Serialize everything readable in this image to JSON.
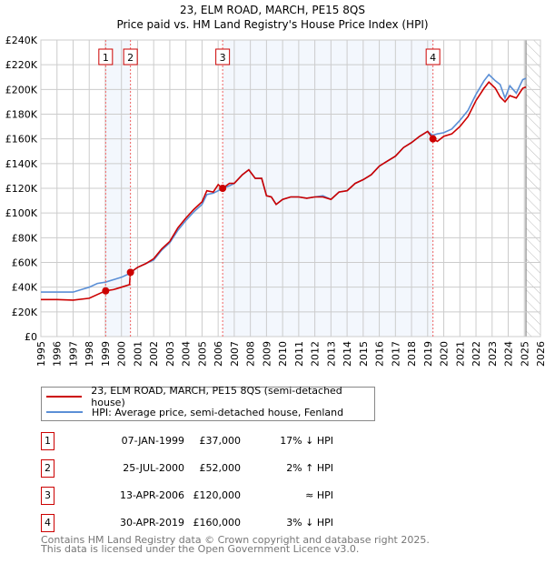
{
  "chart_data": {
    "type": "line",
    "title": "23, ELM ROAD, MARCH, PE15 8QS",
    "subtitle": "Price paid vs. HM Land Registry's House Price Index (HPI)",
    "xlim": [
      1995,
      2026
    ],
    "ylim": [
      0,
      240000
    ],
    "x_ticks": [
      "1995",
      "1996",
      "1997",
      "1998",
      "1999",
      "2000",
      "2001",
      "2002",
      "2003",
      "2004",
      "2005",
      "2006",
      "2007",
      "2008",
      "2009",
      "2010",
      "2011",
      "2012",
      "2013",
      "2014",
      "2015",
      "2016",
      "2017",
      "2018",
      "2019",
      "2020",
      "2021",
      "2022",
      "2023",
      "2024",
      "2025",
      "2026"
    ],
    "y_ticks": [
      {
        "v": 0,
        "label": "£0"
      },
      {
        "v": 20000,
        "label": "£20K"
      },
      {
        "v": 40000,
        "label": "£40K"
      },
      {
        "v": 60000,
        "label": "£60K"
      },
      {
        "v": 80000,
        "label": "£80K"
      },
      {
        "v": 100000,
        "label": "£100K"
      },
      {
        "v": 120000,
        "label": "£120K"
      },
      {
        "v": 140000,
        "label": "£140K"
      },
      {
        "v": 160000,
        "label": "£160K"
      },
      {
        "v": 180000,
        "label": "£180K"
      },
      {
        "v": 200000,
        "label": "£200K"
      },
      {
        "v": 220000,
        "label": "£220K"
      },
      {
        "v": 240000,
        "label": "£240K"
      }
    ],
    "grid": true,
    "forecast_hatch_from": 2025.1,
    "series": [
      {
        "name": "23, ELM ROAD, MARCH, PE15 8QS (semi-detached house)",
        "color": "#cc0000",
        "points": [
          [
            1995,
            30
          ],
          [
            1996,
            30
          ],
          [
            1997,
            29.5
          ],
          [
            1998,
            31
          ],
          [
            1998.5,
            34
          ],
          [
            1999.02,
            37
          ],
          [
            1999.5,
            38
          ],
          [
            2000,
            40
          ],
          [
            2000.5,
            42
          ],
          [
            2000.56,
            52
          ],
          [
            2001,
            56
          ],
          [
            2001.5,
            59
          ],
          [
            2002,
            63
          ],
          [
            2002.5,
            71
          ],
          [
            2003,
            77
          ],
          [
            2003.5,
            88
          ],
          [
            2004,
            96
          ],
          [
            2004.5,
            103
          ],
          [
            2005,
            109
          ],
          [
            2005.3,
            118
          ],
          [
            2005.7,
            117
          ],
          [
            2006,
            123
          ],
          [
            2006.28,
            120
          ],
          [
            2006.7,
            124
          ],
          [
            2007,
            124
          ],
          [
            2007.5,
            131
          ],
          [
            2007.9,
            135
          ],
          [
            2008.3,
            128
          ],
          [
            2008.7,
            128
          ],
          [
            2009,
            114
          ],
          [
            2009.3,
            113
          ],
          [
            2009.6,
            107
          ],
          [
            2010,
            111
          ],
          [
            2010.5,
            113
          ],
          [
            2011,
            113
          ],
          [
            2011.5,
            112
          ],
          [
            2012,
            113
          ],
          [
            2012.5,
            113
          ],
          [
            2013,
            111
          ],
          [
            2013.5,
            117
          ],
          [
            2014,
            118
          ],
          [
            2014.5,
            124
          ],
          [
            2015,
            127
          ],
          [
            2015.5,
            131
          ],
          [
            2016,
            138
          ],
          [
            2016.5,
            142
          ],
          [
            2017,
            146
          ],
          [
            2017.5,
            153
          ],
          [
            2018,
            157
          ],
          [
            2018.5,
            162
          ],
          [
            2019,
            166
          ],
          [
            2019.33,
            160
          ],
          [
            2019.6,
            158
          ],
          [
            2020,
            162
          ],
          [
            2020.5,
            164
          ],
          [
            2021,
            170
          ],
          [
            2021.5,
            178
          ],
          [
            2022,
            191
          ],
          [
            2022.5,
            201
          ],
          [
            2022.8,
            206
          ],
          [
            2023.2,
            201
          ],
          [
            2023.5,
            194
          ],
          [
            2023.8,
            190
          ],
          [
            2024.1,
            195
          ],
          [
            2024.5,
            193
          ],
          [
            2024.9,
            201
          ],
          [
            2025.1,
            202
          ]
        ]
      },
      {
        "name": "HPI: Average price, semi-detached house, Fenland",
        "color": "#5b8fd6",
        "points": [
          [
            1995,
            36
          ],
          [
            1996,
            36
          ],
          [
            1997,
            36
          ],
          [
            1997.5,
            38
          ],
          [
            1998,
            40
          ],
          [
            1998.5,
            43
          ],
          [
            1999,
            44
          ],
          [
            1999.5,
            46
          ],
          [
            2000,
            48
          ],
          [
            2000.5,
            51
          ],
          [
            2001,
            56
          ],
          [
            2001.5,
            59
          ],
          [
            2002,
            62
          ],
          [
            2002.5,
            70
          ],
          [
            2003,
            76
          ],
          [
            2003.5,
            86
          ],
          [
            2004,
            94
          ],
          [
            2004.5,
            101
          ],
          [
            2005,
            107
          ],
          [
            2005.3,
            115
          ],
          [
            2005.7,
            116
          ],
          [
            2006,
            118
          ],
          [
            2006.3,
            120
          ],
          [
            2006.7,
            122
          ],
          [
            2007,
            124
          ],
          [
            2007.5,
            131
          ],
          [
            2007.9,
            135
          ],
          [
            2008.3,
            128
          ],
          [
            2008.7,
            128
          ],
          [
            2009,
            114
          ],
          [
            2009.3,
            113
          ],
          [
            2009.6,
            107
          ],
          [
            2010,
            111
          ],
          [
            2010.5,
            113
          ],
          [
            2011,
            113
          ],
          [
            2011.5,
            112
          ],
          [
            2012,
            113
          ],
          [
            2012.5,
            114
          ],
          [
            2013,
            111
          ],
          [
            2013.5,
            117
          ],
          [
            2014,
            118
          ],
          [
            2014.5,
            124
          ],
          [
            2015,
            127
          ],
          [
            2015.5,
            131
          ],
          [
            2016,
            138
          ],
          [
            2016.5,
            142
          ],
          [
            2017,
            146
          ],
          [
            2017.5,
            153
          ],
          [
            2018,
            157
          ],
          [
            2018.5,
            162
          ],
          [
            2019,
            166
          ],
          [
            2019.3,
            163
          ],
          [
            2019.6,
            164
          ],
          [
            2020,
            165
          ],
          [
            2020.5,
            168
          ],
          [
            2021,
            175
          ],
          [
            2021.5,
            183
          ],
          [
            2022,
            196
          ],
          [
            2022.5,
            207
          ],
          [
            2022.8,
            212
          ],
          [
            2023.2,
            207
          ],
          [
            2023.5,
            204
          ],
          [
            2023.8,
            193
          ],
          [
            2024.1,
            203
          ],
          [
            2024.5,
            197
          ],
          [
            2024.9,
            208
          ],
          [
            2025.1,
            209
          ]
        ]
      }
    ],
    "y_units": "thousands GBP",
    "sales": [
      {
        "num": "1",
        "x": 1999.02,
        "value": 37000,
        "date": "07-JAN-1999",
        "price": "£37,000",
        "hpi": "17% ↓ HPI"
      },
      {
        "num": "2",
        "x": 2000.56,
        "value": 52000,
        "date": "25-JUL-2000",
        "price": "£52,000",
        "hpi": "2% ↑ HPI"
      },
      {
        "num": "3",
        "x": 2006.28,
        "value": 120000,
        "date": "13-APR-2006",
        "price": "£120,000",
        "hpi": "≈ HPI"
      },
      {
        "num": "4",
        "x": 2019.33,
        "value": 160000,
        "date": "30-APR-2019",
        "price": "£160,000",
        "hpi": "3% ↓ HPI"
      }
    ]
  },
  "legend": {
    "property": "23, ELM ROAD, MARCH, PE15 8QS (semi-detached house)",
    "hpi": "HPI: Average price, semi-detached house, Fenland"
  },
  "footer": {
    "line1": "Contains HM Land Registry data © Crown copyright and database right 2025.",
    "line2": "This data is licensed under the Open Government Licence v3.0."
  }
}
